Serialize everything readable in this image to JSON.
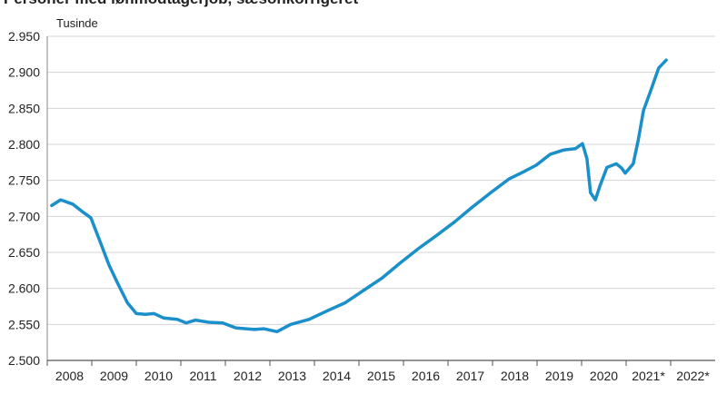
{
  "chart_data": {
    "type": "line",
    "title": "Personer med lønmodtagerjob, sæsonkorrigeret",
    "y_unit_label": "Tusinde",
    "categories": [
      "2008",
      "2009",
      "2010",
      "2011",
      "2012",
      "2013",
      "2014",
      "2015",
      "2016",
      "2017",
      "2018",
      "2019",
      "2020",
      "2021*",
      "2022*"
    ],
    "xlim": [
      2008,
      2023
    ],
    "ylim": [
      2500,
      2950
    ],
    "yticks": [
      {
        "value": 2500,
        "label": "2.500"
      },
      {
        "value": 2550,
        "label": "2.550"
      },
      {
        "value": 2600,
        "label": "2.600"
      },
      {
        "value": 2650,
        "label": "2.650"
      },
      {
        "value": 2700,
        "label": "2.700"
      },
      {
        "value": 2750,
        "label": "2.750"
      },
      {
        "value": 2800,
        "label": "2.800"
      },
      {
        "value": 2850,
        "label": "2.850"
      },
      {
        "value": 2900,
        "label": "2.900"
      },
      {
        "value": 2950,
        "label": "2.950"
      }
    ],
    "grid": true,
    "series": [
      {
        "color": "#1a8fca",
        "x": [
          2008.1,
          2008.3,
          2008.57,
          2008.78,
          2008.98,
          2009.18,
          2009.39,
          2009.59,
          2009.8,
          2010.0,
          2010.2,
          2010.4,
          2010.61,
          2010.92,
          2011.12,
          2011.33,
          2011.63,
          2011.94,
          2012.24,
          2012.65,
          2012.86,
          2013.16,
          2013.47,
          2013.88,
          2014.29,
          2014.69,
          2015.1,
          2015.51,
          2015.92,
          2016.33,
          2016.73,
          2017.14,
          2017.55,
          2017.96,
          2018.37,
          2018.67,
          2018.98,
          2019.29,
          2019.59,
          2019.86,
          2020.02,
          2020.12,
          2020.2,
          2020.31,
          2020.41,
          2020.57,
          2020.78,
          2020.9,
          2020.98,
          2021.16,
          2021.27,
          2021.39,
          2021.55,
          2021.73,
          2021.9
        ],
        "values": [
          2715,
          2723,
          2717,
          2707,
          2698,
          2666,
          2632,
          2606,
          2580,
          2565,
          2564,
          2565,
          2559,
          2557,
          2552,
          2556,
          2553,
          2552,
          2545,
          2543,
          2544,
          2540,
          2550,
          2557,
          2569,
          2580,
          2597,
          2614,
          2635,
          2655,
          2673,
          2692,
          2713,
          2733,
          2752,
          2761,
          2771,
          2786,
          2792,
          2794,
          2801,
          2780,
          2733,
          2723,
          2742,
          2768,
          2773,
          2767,
          2760,
          2773,
          2805,
          2847,
          2874,
          2906,
          2917
        ]
      }
    ]
  }
}
